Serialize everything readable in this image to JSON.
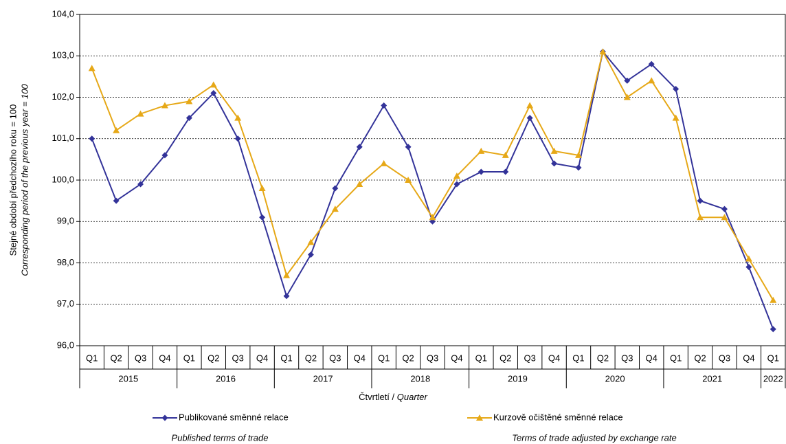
{
  "chart_data": {
    "type": "line",
    "y_label": "Stejné období předchozího roku = 100",
    "y_label_en": "Corresponding period of the previous year = 100",
    "x_label": "Čtvrtletí / ",
    "x_label_en": "Quarter",
    "categories": [
      "Q1",
      "Q2",
      "Q3",
      "Q4",
      "Q1",
      "Q2",
      "Q3",
      "Q4",
      "Q1",
      "Q2",
      "Q3",
      "Q4",
      "Q1",
      "Q2",
      "Q3",
      "Q4",
      "Q1",
      "Q2",
      "Q3",
      "Q4",
      "Q1",
      "Q2",
      "Q3",
      "Q4",
      "Q1",
      "Q2",
      "Q3",
      "Q4",
      "Q1"
    ],
    "year_labels": [
      "2015",
      null,
      null,
      null,
      "2016",
      null,
      null,
      null,
      "2017",
      null,
      null,
      null,
      "2018",
      null,
      null,
      null,
      "2019",
      null,
      null,
      null,
      "2020",
      null,
      null,
      null,
      "2021",
      null,
      null,
      null,
      "2022"
    ],
    "ylim": [
      96,
      104
    ],
    "yticks": [
      {
        "value": 96,
        "label": "96,0"
      },
      {
        "value": 97,
        "label": "97,0"
      },
      {
        "value": 98,
        "label": "98,0"
      },
      {
        "value": 99,
        "label": "99,0"
      },
      {
        "value": 100,
        "label": "100,0"
      },
      {
        "value": 101,
        "label": "101,0"
      },
      {
        "value": 102,
        "label": "102,0"
      },
      {
        "value": 103,
        "label": "103,0"
      },
      {
        "value": 104,
        "label": "104,0"
      }
    ],
    "grid": true,
    "series": [
      {
        "name": "Publikované směnné relace",
        "note": "Published terms of trade",
        "color": "#333399",
        "marker": "diamond",
        "values": [
          101.0,
          99.5,
          99.9,
          100.6,
          101.5,
          102.1,
          101.0,
          99.1,
          97.2,
          98.2,
          99.8,
          100.8,
          101.8,
          100.8,
          99.0,
          99.9,
          100.2,
          100.2,
          101.5,
          100.4,
          100.3,
          103.1,
          102.4,
          102.8,
          102.2,
          99.5,
          99.3,
          97.9,
          96.4
        ]
      },
      {
        "name": "Kurzově očištěné směnné relace",
        "note": "Terms of trade adjusted by exchange rate",
        "color": "#e6a817",
        "marker": "triangle",
        "values": [
          102.7,
          101.2,
          101.6,
          101.8,
          101.9,
          102.3,
          101.5,
          99.8,
          97.7,
          98.5,
          99.3,
          99.9,
          100.4,
          100.0,
          99.1,
          100.1,
          100.7,
          100.6,
          101.8,
          100.7,
          100.6,
          103.1,
          102.0,
          102.4,
          101.5,
          99.1,
          99.1,
          98.1,
          97.1
        ]
      }
    ]
  }
}
